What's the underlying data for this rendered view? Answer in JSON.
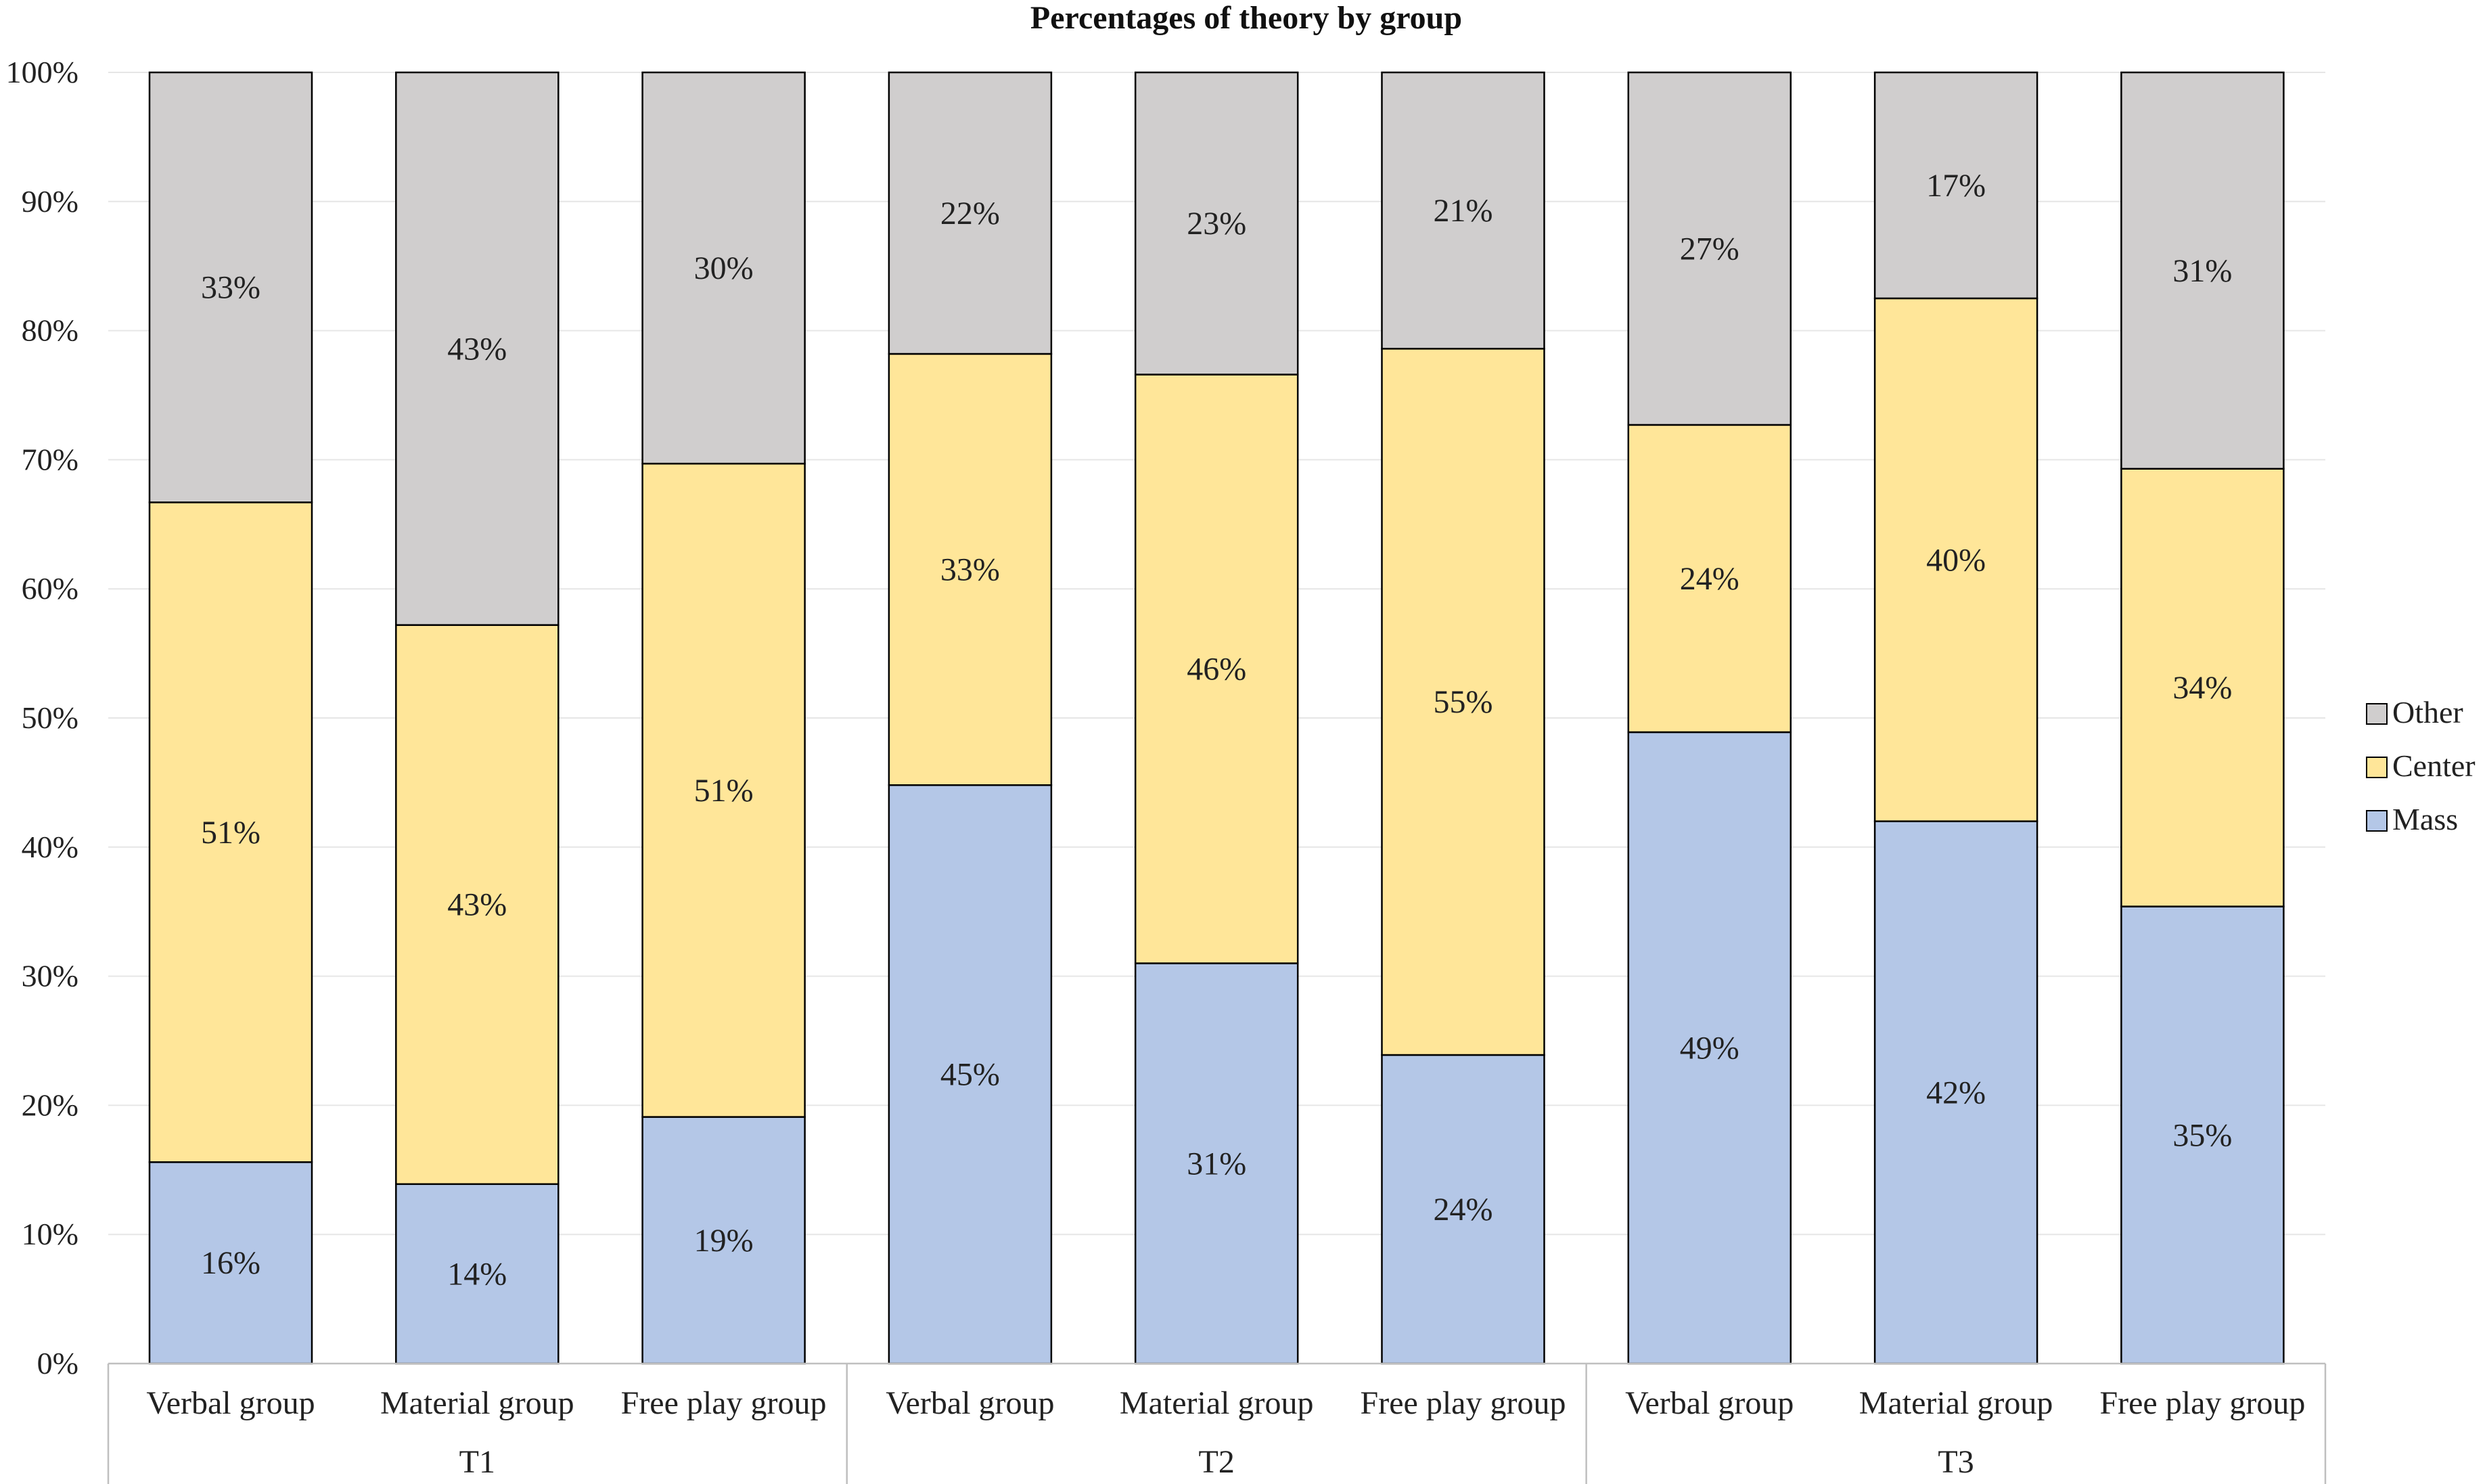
{
  "chart_data": {
    "type": "bar",
    "stacked": true,
    "title": "Percentages of theory by group",
    "xlabel": "",
    "ylabel": "",
    "ylim": [
      0,
      100
    ],
    "y_ticks": [
      "0%",
      "10%",
      "20%",
      "30%",
      "40%",
      "50%",
      "60%",
      "70%",
      "80%",
      "90%",
      "100%"
    ],
    "grid": true,
    "legend_position": "right",
    "categories": [
      "Verbal group",
      "Material group",
      "Free play group",
      "Verbal group",
      "Material group",
      "Free play group",
      "Verbal group",
      "Material group",
      "Free play group"
    ],
    "groups": [
      {
        "label": "T1",
        "count": 3
      },
      {
        "label": "T2",
        "count": 3
      },
      {
        "label": "T3",
        "count": 3
      }
    ],
    "series": [
      {
        "name": "Mass",
        "color": "#B4C7E7",
        "values": [
          15.6,
          13.9,
          19.1,
          44.8,
          31.0,
          23.9,
          48.9,
          42.0,
          35.4
        ],
        "labels": [
          "16%",
          "14%",
          "19%",
          "45%",
          "31%",
          "24%",
          "49%",
          "42%",
          "35%"
        ]
      },
      {
        "name": "Center",
        "color": "#FFE699",
        "values": [
          51.1,
          43.3,
          50.6,
          33.4,
          45.6,
          54.7,
          23.8,
          40.5,
          33.9
        ],
        "labels": [
          "51%",
          "43%",
          "51%",
          "33%",
          "46%",
          "55%",
          "24%",
          "40%",
          "34%"
        ]
      },
      {
        "name": "Other",
        "color": "#D0CECE",
        "values": [
          33.3,
          42.8,
          30.3,
          21.8,
          23.4,
          21.4,
          27.3,
          17.5,
          30.7
        ],
        "labels": [
          "33%",
          "43%",
          "30%",
          "22%",
          "23%",
          "21%",
          "27%",
          "17%",
          "31%"
        ]
      }
    ],
    "legend": [
      "Other",
      "Center",
      "Mass"
    ]
  }
}
